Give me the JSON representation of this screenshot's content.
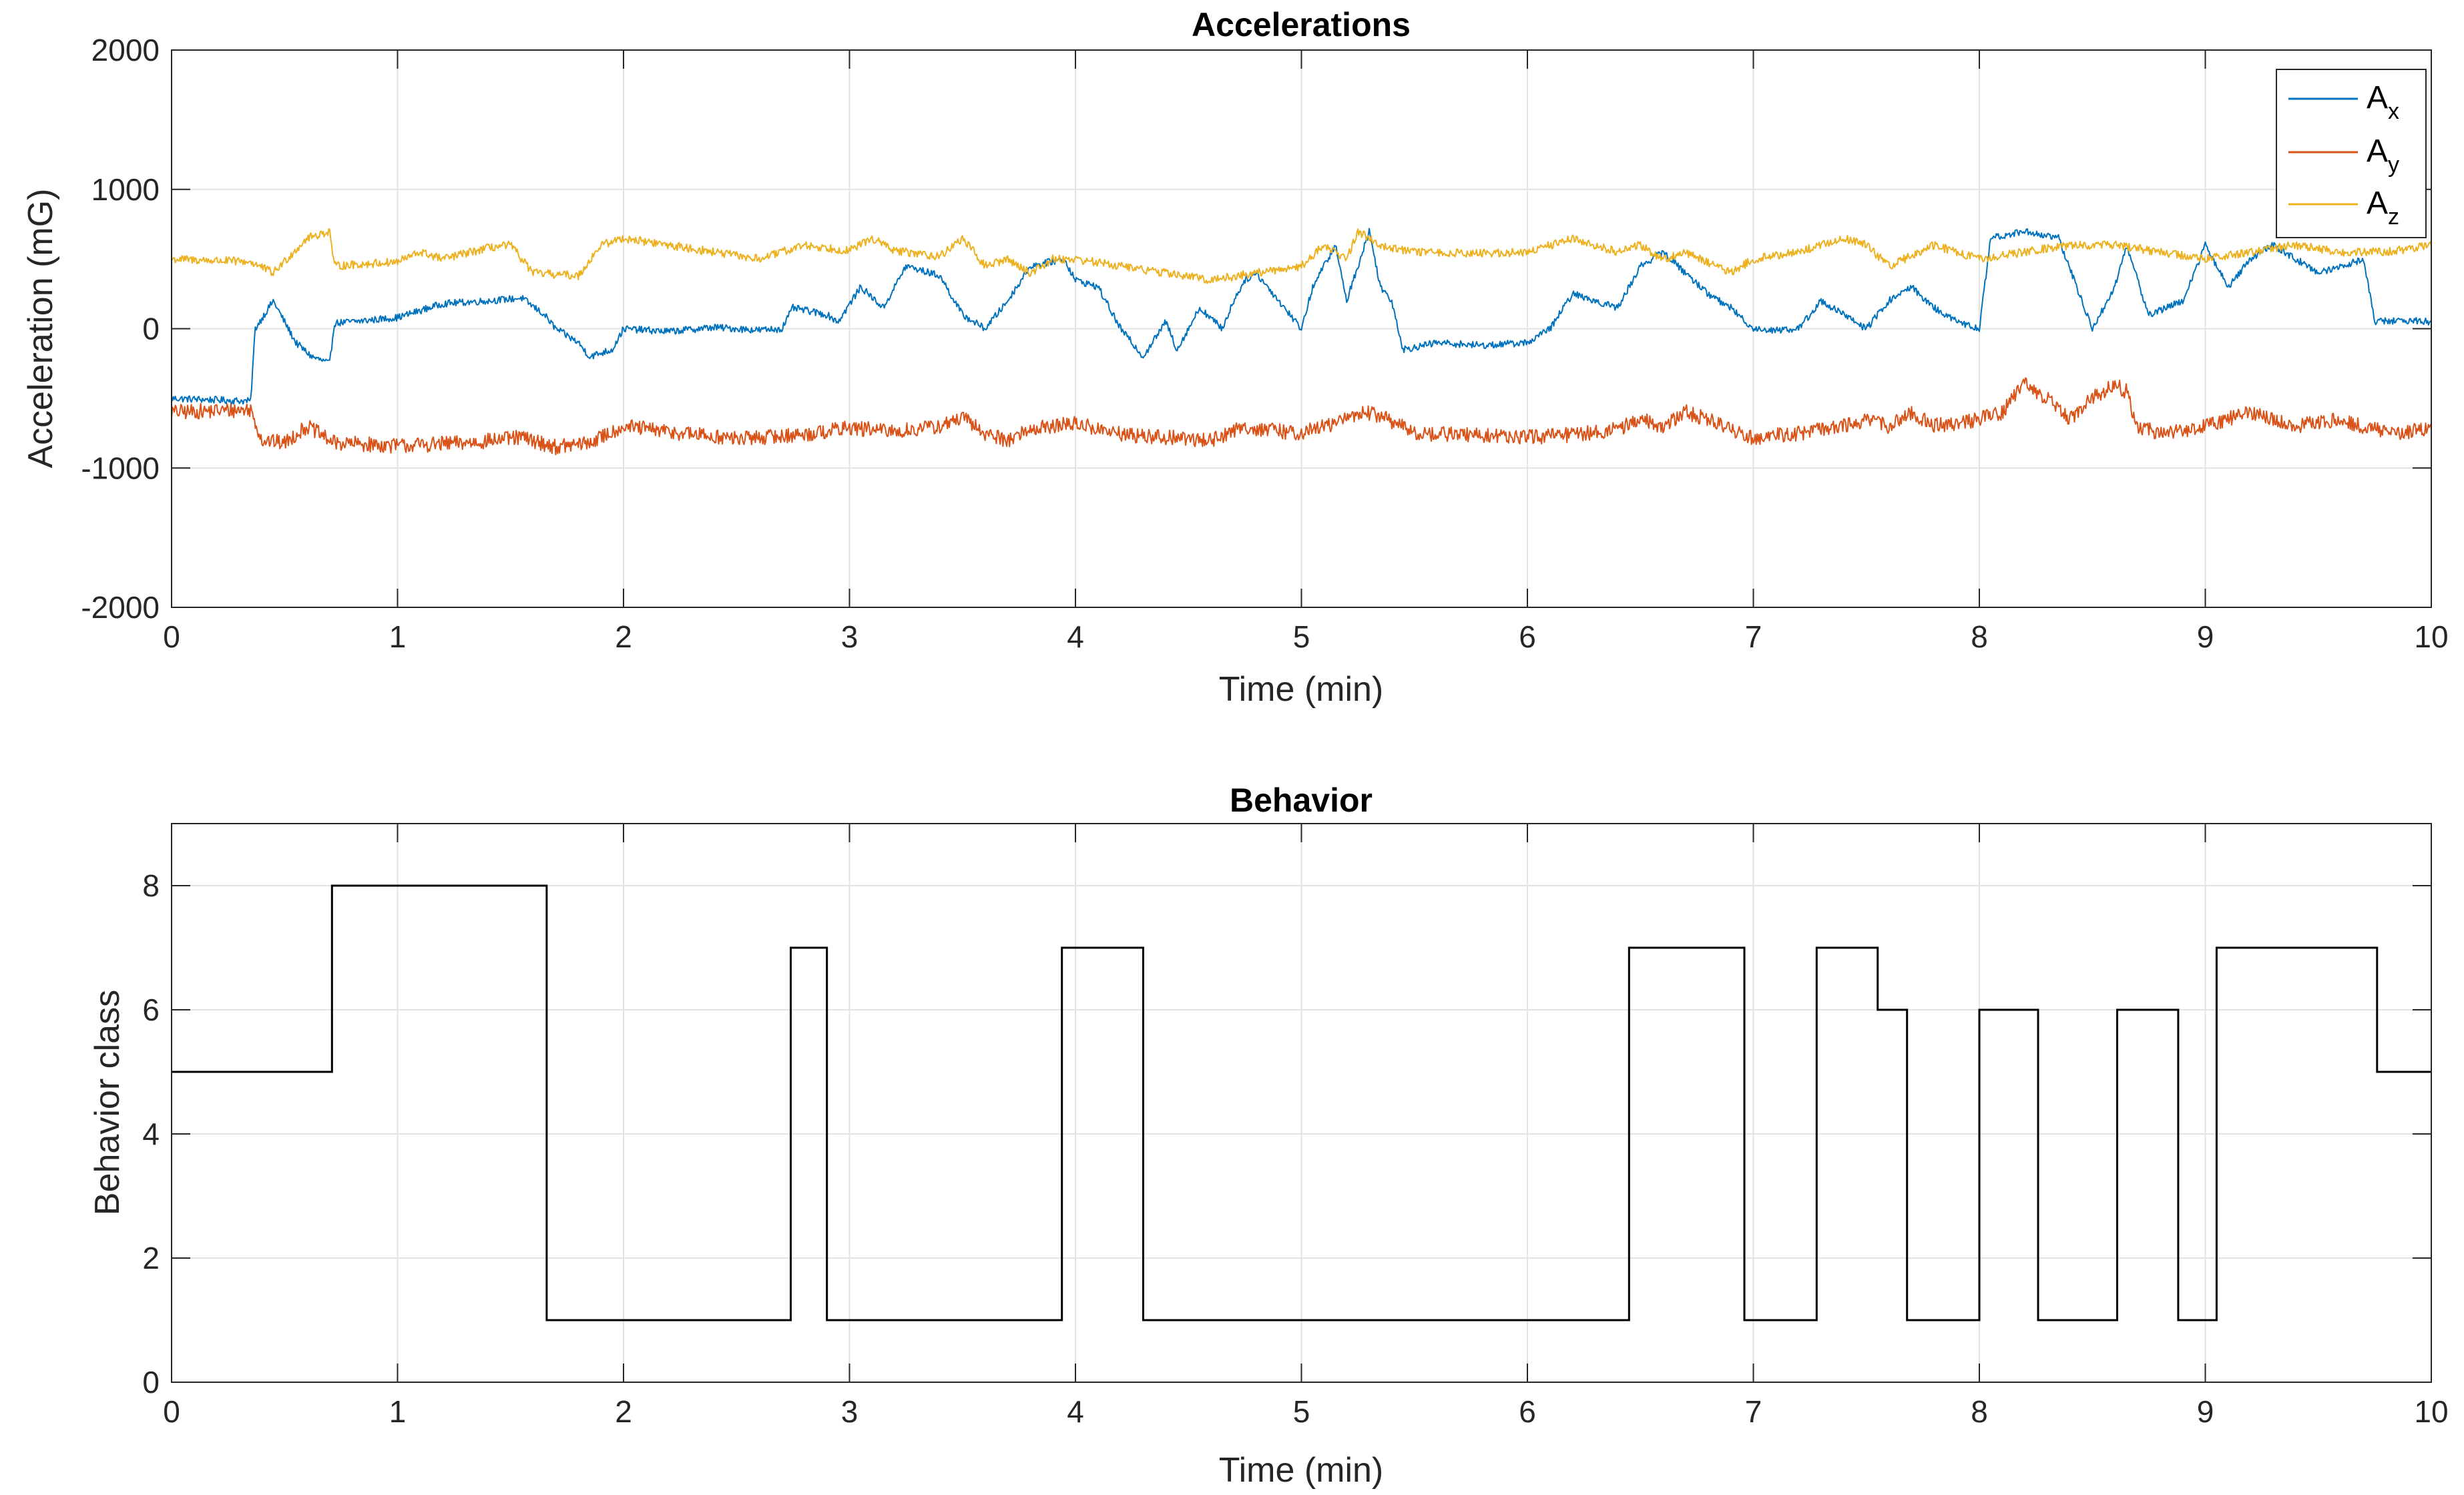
{
  "chart_data": [
    {
      "type": "line",
      "title": "Accelerations",
      "xlabel": "Time (min)",
      "ylabel": "Acceleration (mG)",
      "xlim": [
        0,
        10
      ],
      "ylim": [
        -2000,
        2000
      ],
      "xticks": [
        0,
        1,
        2,
        3,
        4,
        5,
        6,
        7,
        8,
        9,
        10
      ],
      "yticks": [
        -2000,
        -1000,
        0,
        1000,
        2000
      ],
      "grid": true,
      "legend_position": "top-right",
      "series": [
        {
          "name": "A_x",
          "label_base": "A",
          "label_sub": "x",
          "color": "#0072BD",
          "noise": 25,
          "x": [
            0,
            0.35,
            0.37,
            0.45,
            0.55,
            0.62,
            0.7,
            0.72,
            0.8,
            1.0,
            1.2,
            1.4,
            1.55,
            1.65,
            1.7,
            1.8,
            1.85,
            1.95,
            2.0,
            2.2,
            2.4,
            2.6,
            2.7,
            2.75,
            2.9,
            2.95,
            3.05,
            3.15,
            3.25,
            3.4,
            3.5,
            3.6,
            3.7,
            3.8,
            3.95,
            4.0,
            4.1,
            4.2,
            4.3,
            4.4,
            4.45,
            4.55,
            4.65,
            4.7,
            4.75,
            4.8,
            4.9,
            5.0,
            5.05,
            5.15,
            5.2,
            5.3,
            5.35,
            5.4,
            5.45,
            5.6,
            5.8,
            6.0,
            6.1,
            6.2,
            6.4,
            6.5,
            6.6,
            6.7,
            6.8,
            6.9,
            7.0,
            7.1,
            7.2,
            7.3,
            7.4,
            7.5,
            7.6,
            7.7,
            7.8,
            7.9,
            8.0,
            8.05,
            8.2,
            8.35,
            8.5,
            8.6,
            8.65,
            8.75,
            8.9,
            9.0,
            9.1,
            9.2,
            9.3,
            9.4,
            9.5,
            9.6,
            9.7,
            9.75,
            9.85,
            10.0
          ],
          "y": [
            -500,
            -520,
            0,
            200,
            -100,
            -200,
            -250,
            40,
            50,
            80,
            180,
            200,
            220,
            100,
            0,
            -100,
            -200,
            -150,
            0,
            -20,
            10,
            -10,
            0,
            150,
            100,
            50,
            300,
            150,
            450,
            380,
            100,
            0,
            200,
            450,
            500,
            350,
            300,
            0,
            -200,
            50,
            -150,
            150,
            0,
            200,
            350,
            400,
            200,
            0,
            300,
            600,
            200,
            700,
            300,
            200,
            -150,
            -100,
            -120,
            -100,
            0,
            250,
            150,
            450,
            550,
            400,
            250,
            150,
            0,
            -10,
            0,
            200,
            100,
            0,
            200,
            300,
            150,
            50,
            0,
            650,
            700,
            650,
            0,
            300,
            600,
            100,
            200,
            600,
            300,
            500,
            600,
            500,
            400,
            450,
            500,
            50,
            60,
            50
          ]
        },
        {
          "name": "A_y",
          "label_base": "A",
          "label_sub": "y",
          "color": "#D95319",
          "noise": 55,
          "x": [
            0,
            0.35,
            0.4,
            0.5,
            0.6,
            0.72,
            1.0,
            1.3,
            1.55,
            1.7,
            1.85,
            2.0,
            2.2,
            2.5,
            2.8,
            3.0,
            3.2,
            3.4,
            3.5,
            3.6,
            3.7,
            3.8,
            4.0,
            4.2,
            4.4,
            4.6,
            4.75,
            4.8,
            5.0,
            5.2,
            5.25,
            5.35,
            5.5,
            5.7,
            6.0,
            6.2,
            6.4,
            6.5,
            6.6,
            6.7,
            6.8,
            6.9,
            7.0,
            7.2,
            7.4,
            7.5,
            7.6,
            7.7,
            7.8,
            8.0,
            8.1,
            8.2,
            8.3,
            8.4,
            8.5,
            8.6,
            8.65,
            8.7,
            8.8,
            9.0,
            9.2,
            9.4,
            9.6,
            9.8,
            10.0
          ],
          "y": [
            -600,
            -580,
            -800,
            -820,
            -700,
            -820,
            -840,
            -820,
            -780,
            -850,
            -820,
            -700,
            -740,
            -790,
            -760,
            -710,
            -740,
            -700,
            -640,
            -750,
            -800,
            -720,
            -680,
            -760,
            -780,
            -800,
            -700,
            -720,
            -750,
            -650,
            -600,
            -620,
            -750,
            -760,
            -780,
            -760,
            -720,
            -650,
            -700,
            -600,
            -650,
            -720,
            -780,
            -750,
            -700,
            -650,
            -700,
            -600,
            -700,
            -650,
            -600,
            -400,
            -500,
            -650,
            -500,
            -400,
            -450,
            -700,
            -750,
            -700,
            -600,
            -700,
            -650,
            -750,
            -720
          ]
        },
        {
          "name": "A_z",
          "label_base": "A",
          "label_sub": "z",
          "color": "#EDB120",
          "noise": 30,
          "x": [
            0,
            0.35,
            0.45,
            0.6,
            0.7,
            0.72,
            1.0,
            1.1,
            1.2,
            1.4,
            1.5,
            1.6,
            1.8,
            1.9,
            2.0,
            2.2,
            2.4,
            2.6,
            2.8,
            3.0,
            3.1,
            3.2,
            3.4,
            3.5,
            3.6,
            3.7,
            3.8,
            3.9,
            4.0,
            4.2,
            4.4,
            4.6,
            4.8,
            5.0,
            5.1,
            5.2,
            5.25,
            5.35,
            5.5,
            5.8,
            6.0,
            6.2,
            6.4,
            6.5,
            6.6,
            6.7,
            6.9,
            7.0,
            7.2,
            7.4,
            7.5,
            7.6,
            7.8,
            8.0,
            8.2,
            8.4,
            8.6,
            8.8,
            9.0,
            9.2,
            9.4,
            9.6,
            9.8,
            10.0
          ],
          "y": [
            500,
            480,
            400,
            650,
            700,
            450,
            480,
            550,
            500,
            580,
            600,
            400,
            380,
            600,
            650,
            600,
            550,
            500,
            600,
            560,
            650,
            560,
            520,
            650,
            450,
            500,
            400,
            500,
            500,
            450,
            400,
            350,
            400,
            450,
            600,
            500,
            700,
            600,
            550,
            540,
            550,
            650,
            550,
            600,
            500,
            550,
            400,
            500,
            550,
            650,
            600,
            450,
            600,
            500,
            550,
            600,
            600,
            550,
            500,
            550,
            600,
            550,
            550,
            600
          ]
        }
      ]
    },
    {
      "type": "line",
      "step": true,
      "title": "Behavior",
      "xlabel": "Time (min)",
      "ylabel": "Behavior class",
      "xlim": [
        0,
        10
      ],
      "ylim": [
        0,
        9
      ],
      "xticks": [
        0,
        1,
        2,
        3,
        4,
        5,
        6,
        7,
        8,
        9,
        10
      ],
      "yticks": [
        0,
        2,
        4,
        6,
        8
      ],
      "grid": true,
      "series": [
        {
          "name": "Behavior class",
          "color": "#000000",
          "x": [
            0,
            0.71,
            1.66,
            2.74,
            2.9,
            3.94,
            4.3,
            6.45,
            6.96,
            7.28,
            7.55,
            7.68,
            8.0,
            8.26,
            8.61,
            8.88,
            9.05,
            9.76,
            10.0
          ],
          "y": [
            5,
            8,
            1,
            7,
            1,
            7,
            1,
            7,
            1,
            7,
            6,
            1,
            6,
            1,
            6,
            1,
            7,
            5,
            5
          ]
        }
      ]
    }
  ]
}
